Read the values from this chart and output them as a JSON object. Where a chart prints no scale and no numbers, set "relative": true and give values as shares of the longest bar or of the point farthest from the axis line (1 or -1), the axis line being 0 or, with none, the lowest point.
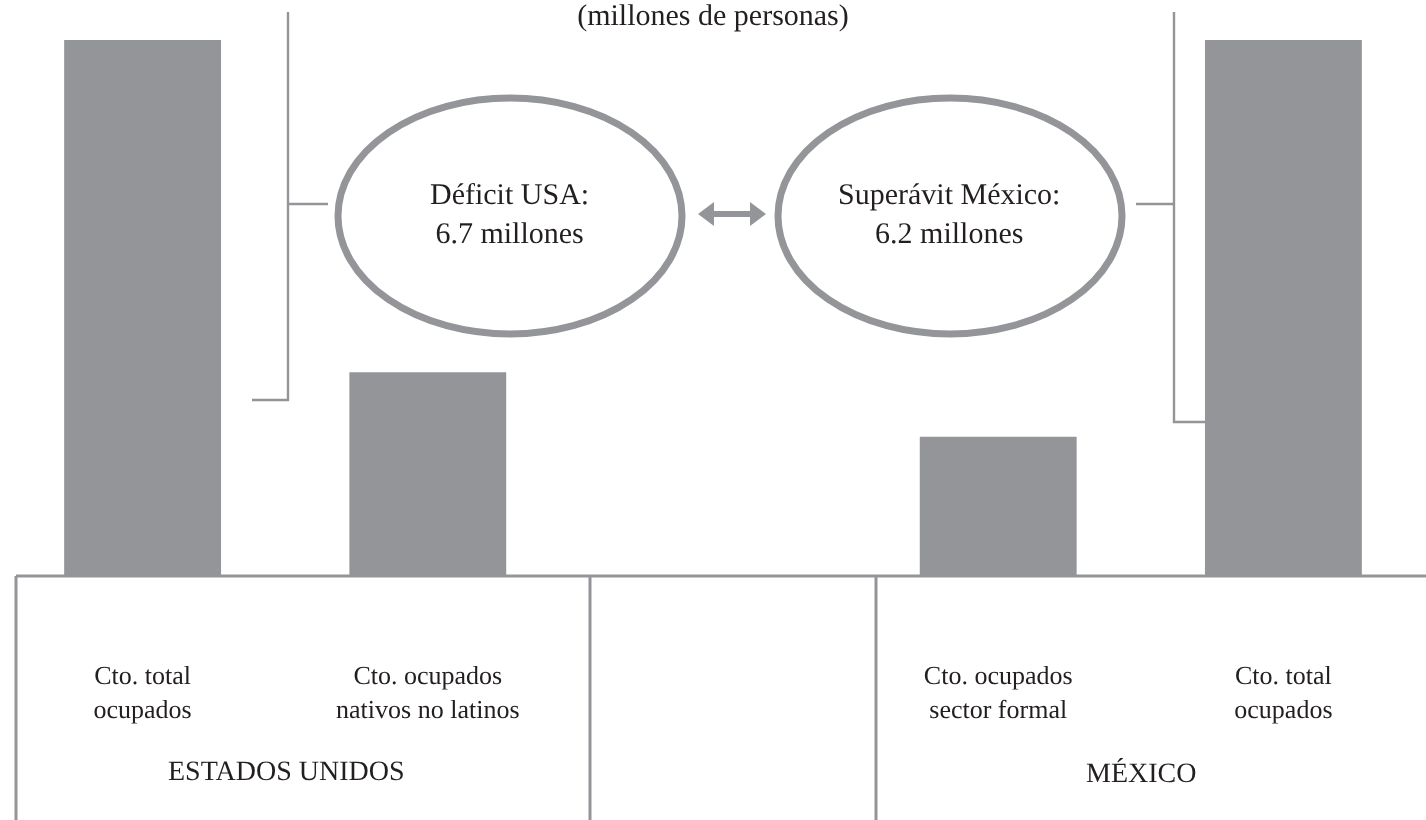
{
  "chart_data": {
    "type": "bar",
    "title": "(millones de personas)",
    "relative": true,
    "categories": [
      "Cto. total ocupados",
      "Cto. ocupados nativos no latinos",
      null,
      "Cto. ocupados sector formal",
      "Cto. total ocupados"
    ],
    "values": [
      1,
      0.38,
      null,
      0.26,
      1
    ],
    "color": "#939598",
    "grid": false,
    "legend": false,
    "annotations": [
      "ESTADOS UNIDOS",
      "MÉXICO",
      "Déficit USA: 6.7 millones",
      "Superávit México: 6.2 millones"
    ]
  }
}
